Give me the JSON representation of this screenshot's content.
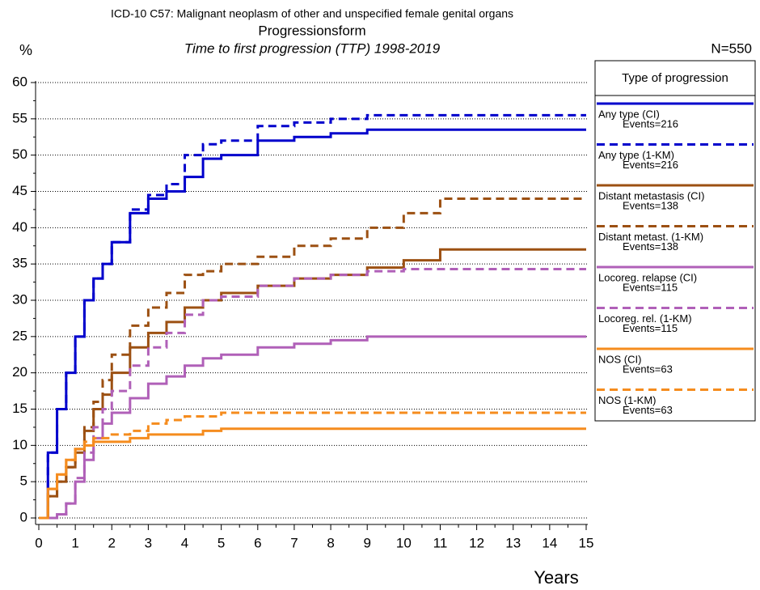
{
  "chart_data": {
    "type": "line",
    "step": true,
    "title": "ICD-10 C57: Malignant neoplasm of other and unspecified female genital organs",
    "subtitle": "Progressionsform",
    "subtitle2": "Time to first progression (TTP) 1998-2019",
    "y_label": "%",
    "x_label": "Years",
    "n_label": "N=550",
    "legend_title": "Type of progression",
    "grid": true,
    "x": [
      0,
      0.25,
      0.5,
      0.75,
      1,
      1.25,
      1.5,
      1.75,
      2,
      2.5,
      3,
      3.5,
      4,
      4.5,
      5,
      6,
      7,
      8,
      9,
      10,
      11,
      12,
      13,
      14,
      15
    ],
    "xlim": [
      0,
      15
    ],
    "xticks": [
      0,
      1,
      2,
      3,
      4,
      5,
      6,
      7,
      8,
      9,
      10,
      11,
      12,
      13,
      14,
      15
    ],
    "ylim": [
      0,
      60
    ],
    "yticks": [
      0,
      5,
      10,
      15,
      20,
      25,
      30,
      35,
      40,
      45,
      50,
      55,
      60
    ],
    "series": [
      {
        "name": "Any type (CI)",
        "events": "Events=216",
        "color": "#0000cc",
        "dash": false,
        "values": [
          0,
          9,
          15,
          20,
          25,
          30,
          33,
          35,
          38,
          42,
          44,
          45,
          47,
          49.5,
          50,
          52,
          52.5,
          53,
          53.5,
          53.5,
          53.5,
          53.5,
          53.5,
          53.5,
          53.5
        ]
      },
      {
        "name": "Any type (1-KM)",
        "events": "Events=216",
        "color": "#0000cc",
        "dash": true,
        "values": [
          0,
          9,
          15,
          20,
          25,
          30,
          33,
          35,
          38,
          42.5,
          44.5,
          46,
          50,
          51.5,
          52,
          54,
          54.5,
          55,
          55.5,
          55.5,
          55.5,
          55.5,
          55.5,
          55.5,
          55.5
        ]
      },
      {
        "name": "Distant metastasis (CI)",
        "events": "Events=138",
        "color": "#9c5012",
        "dash": false,
        "values": [
          0,
          3,
          5,
          7,
          9,
          12,
          15,
          17,
          20,
          23.5,
          25.5,
          27,
          29,
          30,
          31,
          32,
          33,
          33.5,
          34.5,
          35.5,
          37,
          37,
          37,
          37,
          37
        ]
      },
      {
        "name": "Distant metast. (1-KM)",
        "events": "Events=138",
        "color": "#9c5012",
        "dash": true,
        "values": [
          0,
          3,
          5,
          7,
          9.5,
          12.5,
          16,
          19,
          22.5,
          26.5,
          29,
          31,
          33.5,
          34,
          35,
          36,
          37.5,
          38.5,
          40,
          42,
          44,
          44,
          44,
          44,
          44
        ]
      },
      {
        "name": "Locoreg. relapse (CI)",
        "events": "Events=115",
        "color": "#b060b8",
        "dash": false,
        "values": [
          0,
          0,
          0.5,
          2,
          5,
          8,
          11,
          13,
          14.5,
          16.5,
          18.5,
          19.5,
          21,
          22,
          22.5,
          23.5,
          24,
          24.5,
          25,
          25,
          25,
          25,
          25,
          25,
          25
        ]
      },
      {
        "name": "Locoreg. rel. (1-KM)",
        "events": "Events=115",
        "color": "#b060b8",
        "dash": true,
        "values": [
          0,
          0,
          0.5,
          2,
          5.5,
          9,
          12.5,
          15,
          17.5,
          21,
          23.5,
          25.5,
          28,
          30,
          30.5,
          32,
          33,
          33.5,
          34,
          34.3,
          34.3,
          34.3,
          34.3,
          34.3,
          34.3
        ]
      },
      {
        "name": "NOS (CI)",
        "events": "Events=63",
        "color": "#f58c1e",
        "dash": false,
        "values": [
          0,
          4,
          6,
          8,
          9.5,
          10,
          10.5,
          10.5,
          10.5,
          11,
          11.5,
          11.5,
          11.5,
          12,
          12.3,
          12.3,
          12.3,
          12.3,
          12.3,
          12.3,
          12.3,
          12.3,
          12.3,
          12.3,
          12.3
        ]
      },
      {
        "name": "NOS (1-KM)",
        "events": "Events=63",
        "color": "#f58c1e",
        "dash": true,
        "values": [
          0,
          4,
          6,
          8,
          9.5,
          10.5,
          11,
          11,
          11.5,
          12,
          13,
          13.5,
          14,
          14,
          14.5,
          14.5,
          14.5,
          14.5,
          14.5,
          14.5,
          14.5,
          14.5,
          14.5,
          14.5,
          14.5
        ]
      }
    ]
  }
}
